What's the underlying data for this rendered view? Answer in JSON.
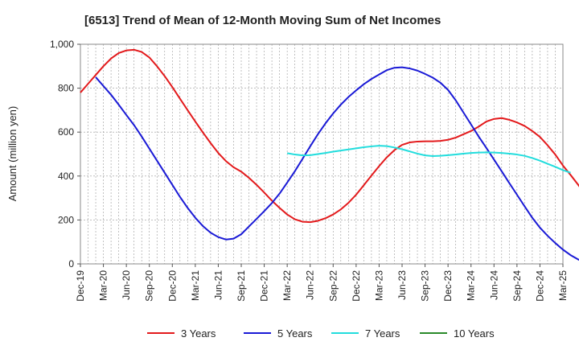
{
  "chart_data": {
    "type": "line",
    "title": "[6513]  Trend of Mean of 12-Month Moving Sum of Net Incomes",
    "xlabel": "",
    "ylabel": "Amount (million yen)",
    "ylim": [
      0,
      1000
    ],
    "yticks": [
      0,
      200,
      400,
      600,
      800,
      1000
    ],
    "ytick_labels": [
      "0",
      "200",
      "400",
      "600",
      "800",
      "1,000"
    ],
    "xticks": [
      "Dec-19",
      "Mar-20",
      "Jun-20",
      "Sep-20",
      "Dec-20",
      "Mar-21",
      "Jun-21",
      "Sep-21",
      "Dec-21",
      "Mar-22",
      "Jun-22",
      "Sep-22",
      "Dec-22",
      "Mar-23",
      "Jun-23",
      "Sep-23",
      "Dec-23",
      "Mar-24",
      "Jun-24",
      "Sep-24",
      "Dec-24",
      "Mar-25"
    ],
    "grid": true,
    "legend_position": "bottom",
    "series": [
      {
        "name": "3 Years",
        "color": "#e31a1c",
        "start_index": 0,
        "values": [
          780,
          820,
          860,
          900,
          935,
          960,
          972,
          975,
          965,
          940,
          900,
          855,
          805,
          752,
          700,
          648,
          598,
          550,
          505,
          468,
          440,
          420,
          392,
          360,
          325,
          288,
          255,
          225,
          203,
          192,
          190,
          196,
          208,
          225,
          248,
          278,
          315,
          358,
          402,
          445,
          485,
          518,
          542,
          553,
          557,
          558,
          558,
          560,
          565,
          575,
          590,
          605,
          625,
          648,
          660,
          664,
          656,
          644,
          628,
          605,
          578,
          540,
          498,
          448,
          405,
          360,
          312
        ]
      },
      {
        "name": "5 Years",
        "color": "#1a1ad6",
        "start_index": 2,
        "values": [
          850,
          810,
          770,
          725,
          678,
          632,
          580,
          525,
          470,
          415,
          360,
          305,
          255,
          210,
          172,
          142,
          122,
          111,
          115,
          135,
          170,
          205,
          240,
          277,
          320,
          370,
          422,
          478,
          535,
          590,
          640,
          685,
          725,
          760,
          790,
          818,
          842,
          862,
          882,
          893,
          895,
          890,
          880,
          865,
          848,
          825,
          792,
          745,
          690,
          635,
          580,
          528,
          475,
          422,
          368,
          315,
          262,
          210,
          165,
          128,
          95,
          65,
          40,
          20,
          6
        ]
      },
      {
        "name": "7 Years",
        "color": "#22dddd",
        "start_index": 27,
        "values": [
          504,
          498,
          494,
          495,
          500,
          505,
          511,
          516,
          521,
          526,
          531,
          535,
          538,
          536,
          530,
          522,
          512,
          502,
          494,
          491,
          492,
          495,
          498,
          502,
          505,
          507,
          508,
          507,
          505,
          502,
          498,
          492,
          482,
          470,
          456,
          442,
          427,
          415
        ]
      },
      {
        "name": "10 Years",
        "color": "#2a8a2a",
        "start_index": 0,
        "values": []
      }
    ]
  }
}
